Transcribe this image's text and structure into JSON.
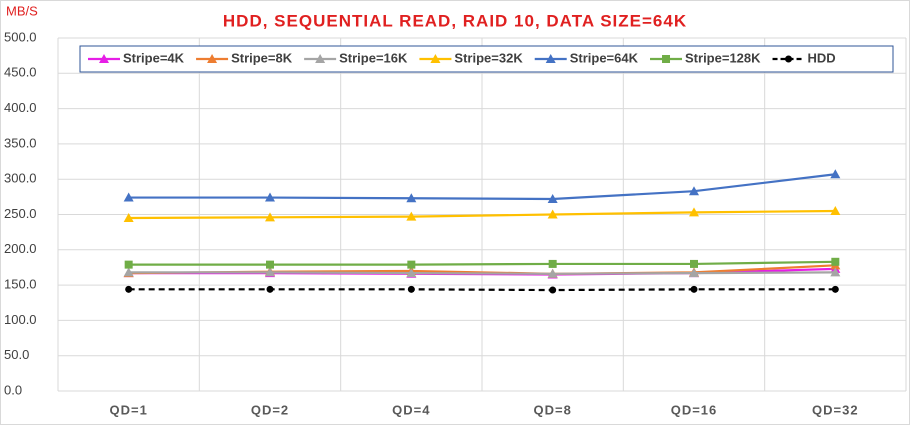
{
  "chart_data": {
    "type": "line",
    "title": "HDD, SEQUENTIAL READ, RAID 10, DATA SIZE=64K",
    "y_label": "MB/S",
    "categories": [
      "QD=1",
      "QD=2",
      "QD=4",
      "QD=8",
      "QD=16",
      "QD=32"
    ],
    "series": [
      {
        "name": "Stripe=4K",
        "color": "#e61ee6",
        "marker": "triangle",
        "values": [
          167,
          167,
          166,
          165,
          167,
          173
        ]
      },
      {
        "name": "Stripe=8K",
        "color": "#ed7d31",
        "marker": "triangle",
        "values": [
          167,
          169,
          170,
          166,
          168,
          178
        ]
      },
      {
        "name": "Stripe=16K",
        "color": "#a5a5a5",
        "marker": "triangle",
        "values": [
          168,
          168,
          167,
          166,
          167,
          168
        ]
      },
      {
        "name": "Stripe=32K",
        "color": "#ffc000",
        "marker": "triangle",
        "values": [
          245,
          246,
          247,
          250,
          253,
          255
        ]
      },
      {
        "name": "Stripe=64K",
        "color": "#4472c4",
        "marker": "triangle",
        "values": [
          274,
          274,
          273,
          272,
          283,
          307
        ]
      },
      {
        "name": "Stripe=128K",
        "color": "#70ad47",
        "marker": "square",
        "values": [
          179,
          179,
          179,
          180,
          180,
          183
        ]
      },
      {
        "name": "HDD",
        "color": "#000000",
        "marker": "circle",
        "dashed": true,
        "values": [
          144,
          144,
          144,
          143,
          144,
          144
        ]
      }
    ],
    "ylim": [
      0,
      500
    ],
    "yticks": [
      {
        "value": 0,
        "label": "0.0"
      },
      {
        "value": 50,
        "label": "50.0"
      },
      {
        "value": 100,
        "label": "100.0"
      },
      {
        "value": 150,
        "label": "150.0"
      },
      {
        "value": 200,
        "label": "200.0"
      },
      {
        "value": 250,
        "label": "250.0"
      },
      {
        "value": 300,
        "label": "300.0"
      },
      {
        "value": 350,
        "label": "350.0"
      },
      {
        "value": 400,
        "label": "400.0"
      },
      {
        "value": 450,
        "label": "450.0"
      },
      {
        "value": 500,
        "label": "500.0"
      }
    ],
    "grid": true
  }
}
